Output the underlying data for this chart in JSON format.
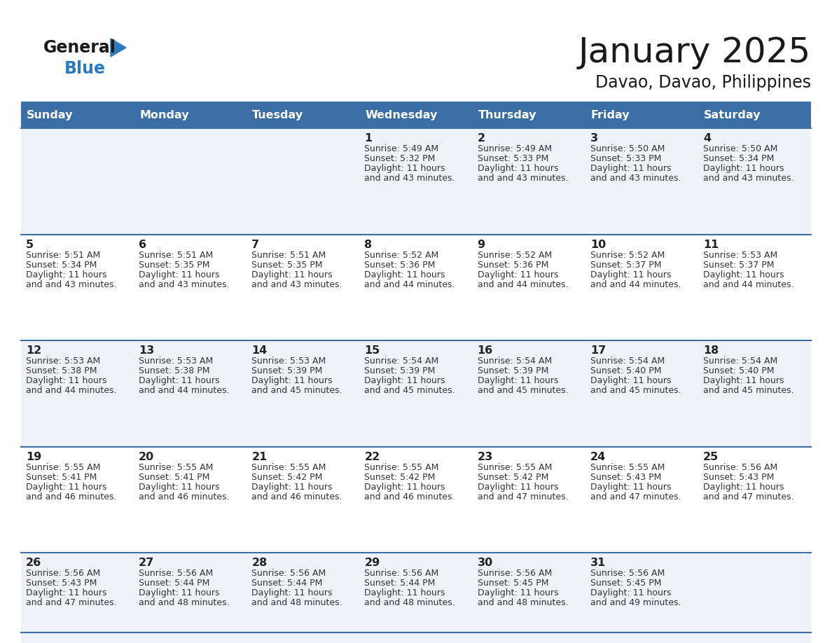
{
  "title": "January 2025",
  "subtitle": "Davao, Davao, Philippines",
  "header_bg": "#3a6ea5",
  "header_text": "#ffffff",
  "row_bg_odd": "#eef2f7",
  "row_bg_even": "#ffffff",
  "day_names": [
    "Sunday",
    "Monday",
    "Tuesday",
    "Wednesday",
    "Thursday",
    "Friday",
    "Saturday"
  ],
  "calendar": [
    [
      {
        "day": "",
        "sunrise": "",
        "sunset": "",
        "daylight": ""
      },
      {
        "day": "",
        "sunrise": "",
        "sunset": "",
        "daylight": ""
      },
      {
        "day": "",
        "sunrise": "",
        "sunset": "",
        "daylight": ""
      },
      {
        "day": "1",
        "sunrise": "5:49 AM",
        "sunset": "5:32 PM",
        "daylight": "11 hours\nand 43 minutes."
      },
      {
        "day": "2",
        "sunrise": "5:49 AM",
        "sunset": "5:33 PM",
        "daylight": "11 hours\nand 43 minutes."
      },
      {
        "day": "3",
        "sunrise": "5:50 AM",
        "sunset": "5:33 PM",
        "daylight": "11 hours\nand 43 minutes."
      },
      {
        "day": "4",
        "sunrise": "5:50 AM",
        "sunset": "5:34 PM",
        "daylight": "11 hours\nand 43 minutes."
      }
    ],
    [
      {
        "day": "5",
        "sunrise": "5:51 AM",
        "sunset": "5:34 PM",
        "daylight": "11 hours\nand 43 minutes."
      },
      {
        "day": "6",
        "sunrise": "5:51 AM",
        "sunset": "5:35 PM",
        "daylight": "11 hours\nand 43 minutes."
      },
      {
        "day": "7",
        "sunrise": "5:51 AM",
        "sunset": "5:35 PM",
        "daylight": "11 hours\nand 43 minutes."
      },
      {
        "day": "8",
        "sunrise": "5:52 AM",
        "sunset": "5:36 PM",
        "daylight": "11 hours\nand 44 minutes."
      },
      {
        "day": "9",
        "sunrise": "5:52 AM",
        "sunset": "5:36 PM",
        "daylight": "11 hours\nand 44 minutes."
      },
      {
        "day": "10",
        "sunrise": "5:52 AM",
        "sunset": "5:37 PM",
        "daylight": "11 hours\nand 44 minutes."
      },
      {
        "day": "11",
        "sunrise": "5:53 AM",
        "sunset": "5:37 PM",
        "daylight": "11 hours\nand 44 minutes."
      }
    ],
    [
      {
        "day": "12",
        "sunrise": "5:53 AM",
        "sunset": "5:38 PM",
        "daylight": "11 hours\nand 44 minutes."
      },
      {
        "day": "13",
        "sunrise": "5:53 AM",
        "sunset": "5:38 PM",
        "daylight": "11 hours\nand 44 minutes."
      },
      {
        "day": "14",
        "sunrise": "5:53 AM",
        "sunset": "5:39 PM",
        "daylight": "11 hours\nand 45 minutes."
      },
      {
        "day": "15",
        "sunrise": "5:54 AM",
        "sunset": "5:39 PM",
        "daylight": "11 hours\nand 45 minutes."
      },
      {
        "day": "16",
        "sunrise": "5:54 AM",
        "sunset": "5:39 PM",
        "daylight": "11 hours\nand 45 minutes."
      },
      {
        "day": "17",
        "sunrise": "5:54 AM",
        "sunset": "5:40 PM",
        "daylight": "11 hours\nand 45 minutes."
      },
      {
        "day": "18",
        "sunrise": "5:54 AM",
        "sunset": "5:40 PM",
        "daylight": "11 hours\nand 45 minutes."
      }
    ],
    [
      {
        "day": "19",
        "sunrise": "5:55 AM",
        "sunset": "5:41 PM",
        "daylight": "11 hours\nand 46 minutes."
      },
      {
        "day": "20",
        "sunrise": "5:55 AM",
        "sunset": "5:41 PM",
        "daylight": "11 hours\nand 46 minutes."
      },
      {
        "day": "21",
        "sunrise": "5:55 AM",
        "sunset": "5:42 PM",
        "daylight": "11 hours\nand 46 minutes."
      },
      {
        "day": "22",
        "sunrise": "5:55 AM",
        "sunset": "5:42 PM",
        "daylight": "11 hours\nand 46 minutes."
      },
      {
        "day": "23",
        "sunrise": "5:55 AM",
        "sunset": "5:42 PM",
        "daylight": "11 hours\nand 47 minutes."
      },
      {
        "day": "24",
        "sunrise": "5:55 AM",
        "sunset": "5:43 PM",
        "daylight": "11 hours\nand 47 minutes."
      },
      {
        "day": "25",
        "sunrise": "5:56 AM",
        "sunset": "5:43 PM",
        "daylight": "11 hours\nand 47 minutes."
      }
    ],
    [
      {
        "day": "26",
        "sunrise": "5:56 AM",
        "sunset": "5:43 PM",
        "daylight": "11 hours\nand 47 minutes."
      },
      {
        "day": "27",
        "sunrise": "5:56 AM",
        "sunset": "5:44 PM",
        "daylight": "11 hours\nand 48 minutes."
      },
      {
        "day": "28",
        "sunrise": "5:56 AM",
        "sunset": "5:44 PM",
        "daylight": "11 hours\nand 48 minutes."
      },
      {
        "day": "29",
        "sunrise": "5:56 AM",
        "sunset": "5:44 PM",
        "daylight": "11 hours\nand 48 minutes."
      },
      {
        "day": "30",
        "sunrise": "5:56 AM",
        "sunset": "5:45 PM",
        "daylight": "11 hours\nand 48 minutes."
      },
      {
        "day": "31",
        "sunrise": "5:56 AM",
        "sunset": "5:45 PM",
        "daylight": "11 hours\nand 49 minutes."
      },
      {
        "day": "",
        "sunrise": "",
        "sunset": "",
        "daylight": ""
      }
    ]
  ]
}
